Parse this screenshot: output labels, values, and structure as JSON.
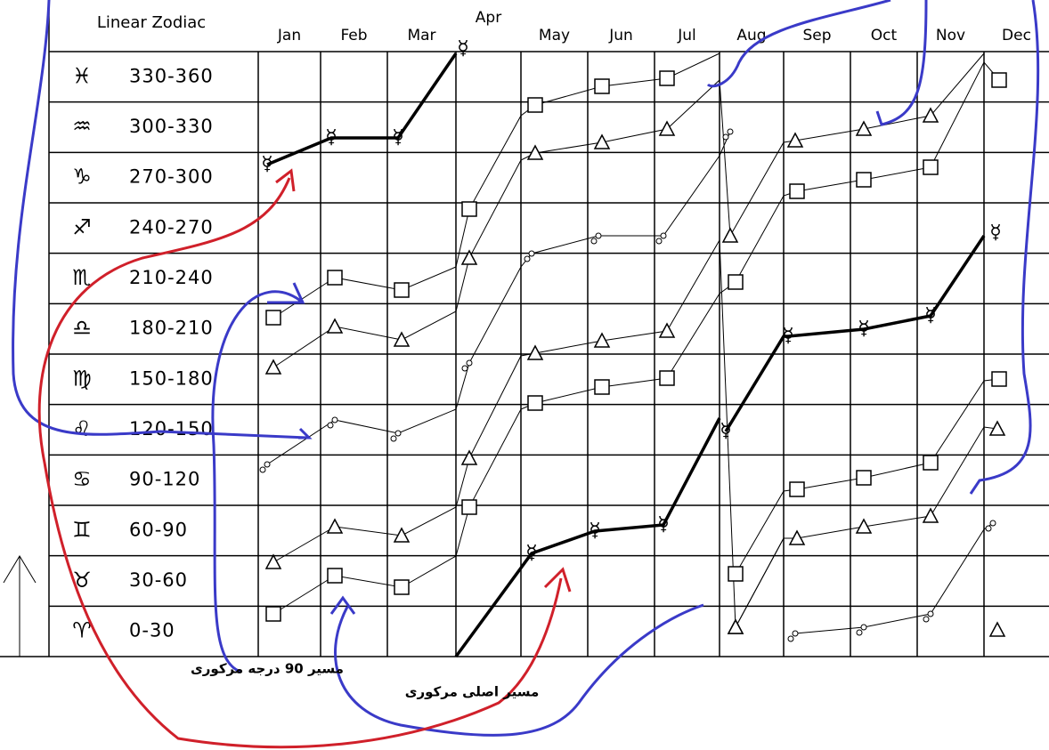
{
  "title": "Linear Zodiac",
  "months": [
    "Jan",
    "Feb",
    "Mar",
    "Apr",
    "May",
    "Jun",
    "Jul",
    "Aug",
    "Sep",
    "Oct",
    "Nov",
    "Dec"
  ],
  "rows": [
    {
      "symbol": "♓",
      "range": "330-360"
    },
    {
      "symbol": "♒",
      "range": "300-330"
    },
    {
      "symbol": "♑",
      "range": "270-300"
    },
    {
      "symbol": "♐",
      "range": "240-270"
    },
    {
      "symbol": "♏",
      "range": "210-240"
    },
    {
      "symbol": "♎",
      "range": "180-210"
    },
    {
      "symbol": "♍",
      "range": "150-180"
    },
    {
      "symbol": "♌",
      "range": "120-150"
    },
    {
      "symbol": "♋",
      "range": "90-120"
    },
    {
      "symbol": "♊",
      "range": "60-90"
    },
    {
      "symbol": "♉",
      "range": "30-60"
    },
    {
      "symbol": "♈",
      "range": "0-30"
    }
  ],
  "mercury_symbol": "☿",
  "annotations": [
    "مسیر 90 درجه مرکوری",
    "مسیر اصلی مرکوری"
  ]
}
